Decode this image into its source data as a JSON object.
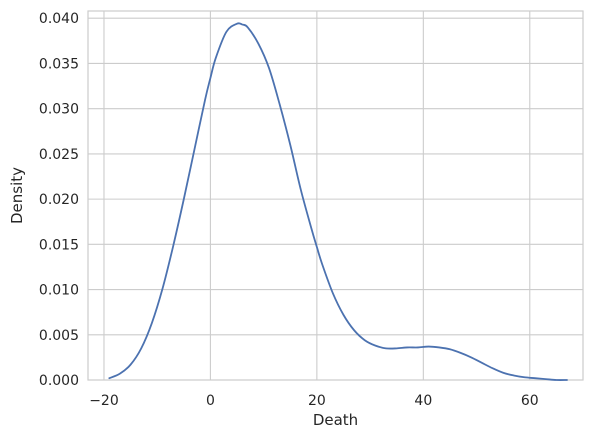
{
  "chart_data": {
    "type": "line",
    "title": "",
    "xlabel": "Death",
    "ylabel": "Density",
    "xlim": [
      -23,
      70
    ],
    "ylim": [
      0,
      0.0408
    ],
    "xticks": [
      -20,
      0,
      20,
      40,
      60
    ],
    "xtick_labels": [
      "−20",
      "0",
      "20",
      "40",
      "60"
    ],
    "yticks": [
      0,
      0.005,
      0.01,
      0.015,
      0.02,
      0.025,
      0.03,
      0.035,
      0.04
    ],
    "ytick_labels": [
      "0.000",
      "0.005",
      "0.010",
      "0.015",
      "0.020",
      "0.025",
      "0.030",
      "0.035",
      "0.040"
    ],
    "grid": true,
    "line_color": "#4c72b0",
    "grid_color": "#cccccc",
    "series": [
      {
        "x": [
          -19,
          -17,
          -15,
          -13,
          -11,
          -9,
          -7,
          -5,
          -3,
          -1,
          0,
          1,
          3,
          5,
          6,
          7,
          9,
          11,
          13,
          15,
          17,
          19,
          20,
          21,
          23,
          25,
          27,
          29,
          31,
          33,
          35,
          37,
          39,
          41,
          43,
          45,
          47,
          49,
          51,
          53,
          55,
          57,
          59,
          61,
          63,
          65,
          67
        ],
        "y": [
          0.0002,
          0.0007,
          0.0017,
          0.0035,
          0.0063,
          0.0101,
          0.0148,
          0.02,
          0.0255,
          0.031,
          0.0334,
          0.0356,
          0.0385,
          0.0394,
          0.0393,
          0.039,
          0.0372,
          0.0345,
          0.0305,
          0.026,
          0.021,
          0.0167,
          0.0147,
          0.0128,
          0.0096,
          0.0072,
          0.0055,
          0.0044,
          0.0038,
          0.0035,
          0.0035,
          0.0036,
          0.0036,
          0.0037,
          0.0036,
          0.0034,
          0.003,
          0.0025,
          0.0019,
          0.0013,
          0.0008,
          0.0005,
          0.0003,
          0.0002,
          0.0001,
          0.0,
          0.0
        ]
      }
    ]
  }
}
